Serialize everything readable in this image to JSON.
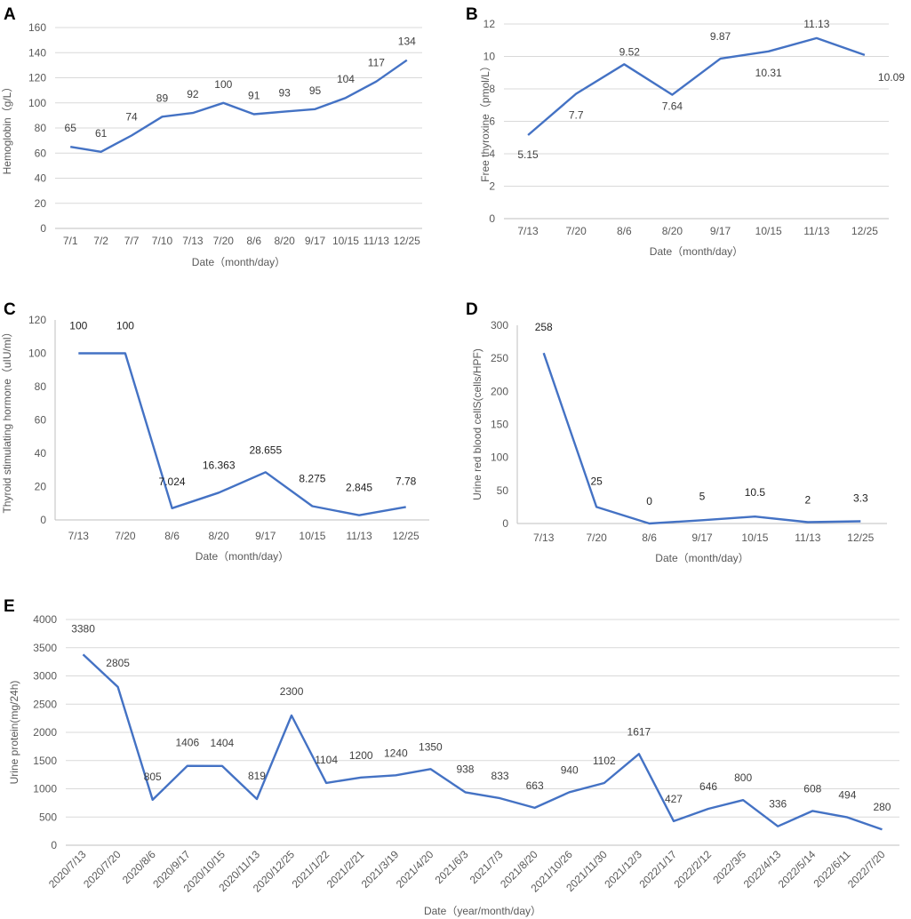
{
  "colors": {
    "series": "#4472C4"
  },
  "chart_data": [
    {
      "id": "A",
      "panel_label": "A",
      "type": "line",
      "title": "",
      "ylabel": "Hemoglobin（g/L）",
      "xlabel": "Date（month/day）",
      "ylim": [
        0,
        160
      ],
      "yticks": [
        0,
        20,
        40,
        60,
        80,
        100,
        120,
        140,
        160
      ],
      "grid": true,
      "categories": [
        "7/1",
        "7/2",
        "7/7",
        "7/10",
        "7/13",
        "7/20",
        "8/6",
        "8/20",
        "9/17",
        "10/15",
        "11/13",
        "12/25"
      ],
      "values": [
        65,
        61,
        74,
        89,
        92,
        100,
        91,
        93,
        95,
        104,
        117,
        134
      ],
      "data_labels": [
        "65",
        "61",
        "74",
        "89",
        "92",
        "100",
        "91",
        "93",
        "95",
        "104",
        "117",
        "134"
      ]
    },
    {
      "id": "B",
      "panel_label": "B",
      "type": "line",
      "title": "",
      "ylabel": "Free thyroxine（pmol/L）",
      "xlabel": "Date（month/day）",
      "ylim": [
        0,
        12
      ],
      "yticks": [
        0,
        2,
        4,
        6,
        8,
        10,
        12
      ],
      "grid": true,
      "categories": [
        "7/13",
        "7/20",
        "8/6",
        "8/20",
        "9/17",
        "10/15",
        "11/13",
        "12/25"
      ],
      "values": [
        5.15,
        7.7,
        9.52,
        7.64,
        9.87,
        10.31,
        11.13,
        10.09
      ],
      "data_labels": [
        "5.15",
        "7.7",
        "9.52",
        "7.64",
        "9.87",
        "10.31",
        "11.13",
        "10.09"
      ]
    },
    {
      "id": "C",
      "panel_label": "C",
      "type": "line",
      "title": "",
      "ylabel": "Thyroid stimulating hormone（uIU/ml）",
      "xlabel": "Date（month/day）",
      "ylim": [
        0,
        120
      ],
      "yticks": [
        0,
        20,
        40,
        60,
        80,
        100,
        120
      ],
      "grid": false,
      "categories": [
        "7/13",
        "7/20",
        "8/6",
        "8/20",
        "9/17",
        "10/15",
        "11/13",
        "12/25"
      ],
      "values": [
        100,
        100,
        7.024,
        16.363,
        28.655,
        8.275,
        2.845,
        7.78
      ],
      "data_labels": [
        "100",
        "100",
        "7.024",
        "16.363",
        "28.655",
        "8.275",
        "2.845",
        "7.78"
      ]
    },
    {
      "id": "D",
      "panel_label": "D",
      "type": "line",
      "title": "",
      "ylabel": "Urine red blood cellS(cells/HPF)",
      "xlabel": "Date（month/day）",
      "ylim": [
        0,
        300
      ],
      "yticks": [
        0,
        50,
        100,
        150,
        200,
        250,
        300
      ],
      "grid": false,
      "categories": [
        "7/13",
        "7/20",
        "8/6",
        "9/17",
        "10/15",
        "11/13",
        "12/25"
      ],
      "values": [
        258,
        25,
        0,
        5,
        10.5,
        2,
        3.3
      ],
      "data_labels": [
        "258",
        "25",
        "0",
        "5",
        "10.5",
        "2",
        "3.3"
      ]
    },
    {
      "id": "E",
      "panel_label": "E",
      "type": "line",
      "title": "",
      "ylabel": "Urine protein(mg/24h)",
      "xlabel": "Date（year/month/day）",
      "ylim": [
        0,
        4000
      ],
      "yticks": [
        0,
        500,
        1000,
        1500,
        2000,
        2500,
        3000,
        3500,
        4000
      ],
      "grid": true,
      "categories": [
        "2020/7/13",
        "2020/7/20",
        "2020/8/6",
        "2020/9/17",
        "2020/10/15",
        "2020/11/13",
        "2020/12/25",
        "2021/1/22",
        "2021/2/21",
        "2021/3/19",
        "2021/4/20",
        "2021/6/3",
        "2021/7/3",
        "2021/8/20",
        "2021/10/26",
        "2021/11/30",
        "2021/12/3",
        "2022/1/17",
        "2022/2/12",
        "2022/3/5",
        "2022/4/13",
        "2022/5/14",
        "2022/6/11",
        "2022/7/20"
      ],
      "values": [
        3380,
        2805,
        805,
        1406,
        1404,
        819,
        2300,
        1104,
        1200,
        1240,
        1350,
        938,
        833,
        663,
        940,
        1102,
        1617,
        427,
        646,
        800,
        336,
        608,
        494,
        280
      ],
      "data_labels": [
        "3380",
        "2805",
        "805",
        "1406",
        "1404",
        "819",
        "2300",
        "1104",
        "1200",
        "1240",
        "1350",
        "938",
        "833",
        "663",
        "940",
        "1102",
        "1617",
        "427",
        "646",
        "800",
        "336",
        "608",
        "494",
        "280"
      ]
    }
  ]
}
